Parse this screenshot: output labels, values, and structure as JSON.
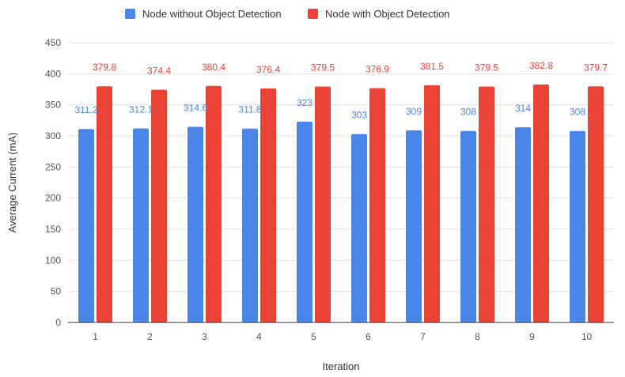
{
  "chart_data": {
    "type": "bar",
    "title": "",
    "xlabel": "Iteration",
    "ylabel": "Average Current (mA)",
    "ylim": [
      0,
      450
    ],
    "yticks": [
      0,
      50,
      100,
      150,
      200,
      250,
      300,
      350,
      400,
      450
    ],
    "categories": [
      "1",
      "2",
      "3",
      "4",
      "5",
      "6",
      "7",
      "8",
      "9",
      "10"
    ],
    "legend_position": "top",
    "grid": true,
    "series": [
      {
        "name": "Node without Object Detection",
        "color": "#4a86e8",
        "values": [
          311.2,
          312.1,
          314.6,
          311.8,
          323,
          303,
          309,
          308,
          314,
          308
        ],
        "labels": [
          "311.2",
          "312.1",
          "314.6",
          "311.8",
          "323",
          "303",
          "309",
          "308",
          "314",
          "308"
        ]
      },
      {
        "name": "Node with Object Detection",
        "color": "#ea4335",
        "values": [
          379.8,
          374.4,
          380.4,
          376.4,
          379.5,
          376.9,
          381.5,
          379.5,
          382.8,
          379.7
        ],
        "labels": [
          "379.8",
          "374.4",
          "380.4",
          "376.4",
          "379.5",
          "376.9",
          "381.5",
          "379.5",
          "382.8",
          "379.7"
        ]
      }
    ]
  }
}
